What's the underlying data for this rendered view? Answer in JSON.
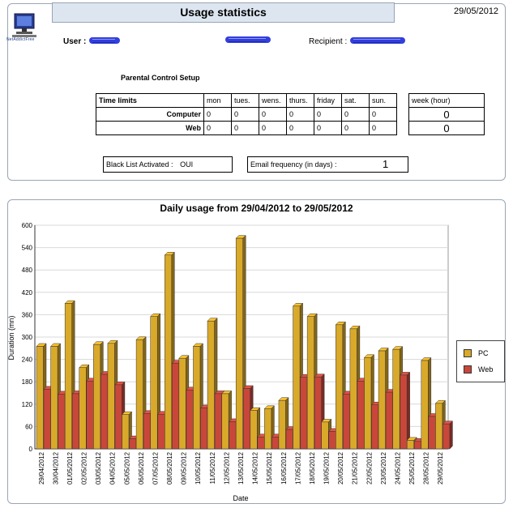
{
  "header": {
    "title": "Usage statistics",
    "date": "29/05/2012",
    "logo_text": "NetAddictFree",
    "user_label": "User :",
    "recipient_label": "Recipient :"
  },
  "parental": {
    "title": "Parental Control Setup",
    "time_limits_label": "Time limits",
    "days": [
      "mon",
      "tues.",
      "wens.",
      "thurs.",
      "friday",
      "sat.",
      "sun."
    ],
    "rows": [
      {
        "label": "Computer",
        "values": [
          "0",
          "0",
          "0",
          "0",
          "0",
          "0",
          "0"
        ],
        "week": "0"
      },
      {
        "label": "Web",
        "values": [
          "0",
          "0",
          "0",
          "0",
          "0",
          "0",
          "0"
        ],
        "week": "0"
      }
    ],
    "week_label": "week (hour)",
    "blacklist_label": "Black List Activated :",
    "blacklist_value": "OUI",
    "email_label": "Email frequency (in days) :",
    "email_value": "1"
  },
  "colors": {
    "pc": "#d9a92a",
    "web": "#c8473a"
  },
  "chart_data": {
    "type": "bar",
    "title": "Daily usage from 29/04/2012 to 29/05/2012",
    "xlabel": "Date",
    "ylabel": "Duration (mn)",
    "ylim": [
      0,
      600
    ],
    "yticks": [
      "0",
      "60",
      "120",
      "180",
      "240",
      "300",
      "360",
      "420",
      "480",
      "540",
      "600"
    ],
    "grid": true,
    "legend_position": "right",
    "categories": [
      "29/04/2012",
      "30/04/2012",
      "01/05/2012",
      "02/05/2012",
      "03/05/2012",
      "04/05/2012",
      "05/05/2012",
      "06/05/2012",
      "07/05/2012",
      "08/05/2012",
      "09/05/2012",
      "10/05/2012",
      "11/05/2012",
      "12/05/2012",
      "13/05/2012",
      "14/05/2012",
      "15/05/2012",
      "16/05/2012",
      "17/05/2012",
      "18/05/2012",
      "19/05/2012",
      "20/05/2012",
      "21/05/2012",
      "22/05/2012",
      "23/05/2012",
      "24/05/2012",
      "25/05/2012",
      "28/05/2012",
      "29/05/2012"
    ],
    "series": [
      {
        "name": "PC",
        "values": [
          275,
          275,
          390,
          218,
          280,
          283,
          92,
          293,
          355,
          520,
          243,
          275,
          343,
          148,
          565,
          103,
          108,
          130,
          383,
          355,
          72,
          333,
          322,
          245,
          263,
          267,
          23,
          237,
          122
        ]
      },
      {
        "name": "Web",
        "values": [
          160,
          147,
          148,
          182,
          200,
          172,
          27,
          95,
          93,
          230,
          158,
          110,
          148,
          73,
          162,
          32,
          32,
          52,
          192,
          193,
          47,
          147,
          182,
          118,
          152,
          198,
          20,
          87,
          67
        ]
      }
    ]
  }
}
